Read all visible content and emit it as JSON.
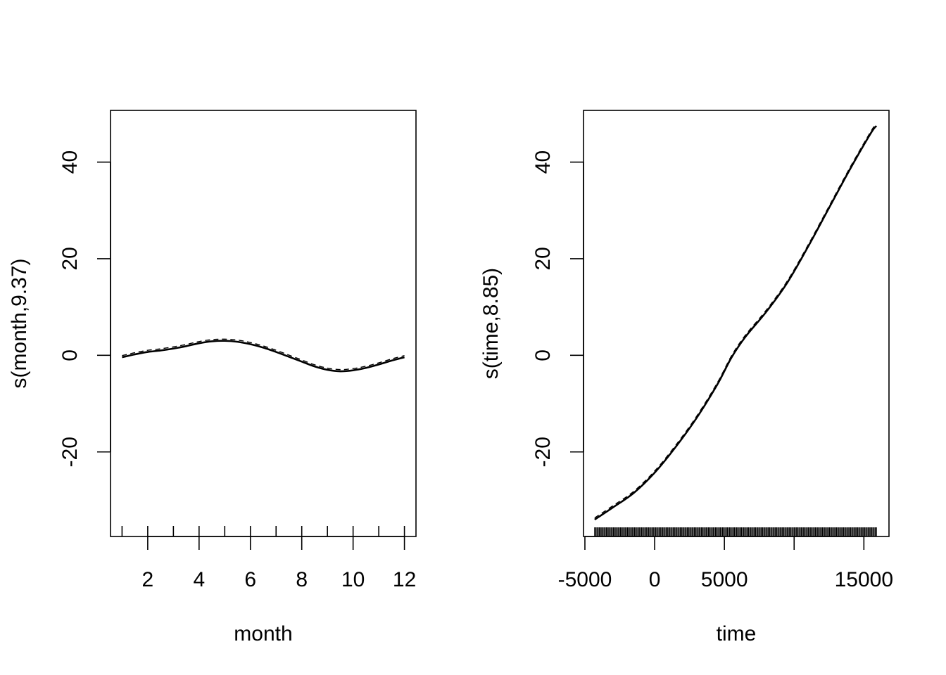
{
  "chart_data": [
    {
      "type": "line",
      "title": "",
      "xlabel": "month",
      "ylabel": "s(month,9.37)",
      "xlim": [
        0.55,
        12.45
      ],
      "ylim": [
        -37.5,
        50.7
      ],
      "xticks": [
        2,
        4,
        6,
        8,
        10,
        12
      ],
      "yticks": [
        -20,
        0,
        20,
        40
      ],
      "rug": [
        1,
        2,
        3,
        4,
        5,
        6,
        7,
        8,
        9,
        10,
        11,
        12
      ],
      "series": [
        {
          "x": [
            1,
            1.5,
            2,
            2.5,
            3,
            3.5,
            4,
            4.5,
            5,
            5.5,
            6,
            6.5,
            7,
            7.5,
            8,
            8.5,
            9,
            9.5,
            10,
            10.5,
            11,
            11.5,
            12
          ],
          "values": [
            -0.4,
            0.2,
            0.7,
            1.0,
            1.4,
            1.9,
            2.5,
            2.9,
            3.0,
            2.8,
            2.3,
            1.6,
            0.7,
            -0.3,
            -1.3,
            -2.3,
            -3.0,
            -3.3,
            -3.1,
            -2.6,
            -1.9,
            -1.1,
            -0.4
          ]
        }
      ]
    },
    {
      "type": "line",
      "title": "",
      "xlabel": "time",
      "ylabel": "s(time,8.85)",
      "xlim": [
        -5100,
        16800
      ],
      "ylim": [
        -37.5,
        50.7
      ],
      "xticks": [
        -5000,
        0,
        5000,
        10000,
        15000
      ],
      "xtick_labels": [
        "-5000",
        "0",
        "5000",
        "",
        "15000"
      ],
      "yticks": [
        -20,
        0,
        20,
        40
      ],
      "rug_range": [
        -4300,
        15900
      ],
      "series": [
        {
          "x": [
            -4300,
            -3000,
            -1500,
            0,
            1500,
            3000,
            4500,
            5500,
            6500,
            8000,
            9500,
            11000,
            12500,
            14000,
            15500,
            15900
          ],
          "values": [
            -34.0,
            -31.5,
            -28.5,
            -24.3,
            -19.0,
            -13.0,
            -6.0,
            -0.5,
            3.8,
            9.0,
            15.0,
            22.5,
            30.5,
            38.5,
            46.0,
            47.5
          ]
        }
      ]
    }
  ]
}
